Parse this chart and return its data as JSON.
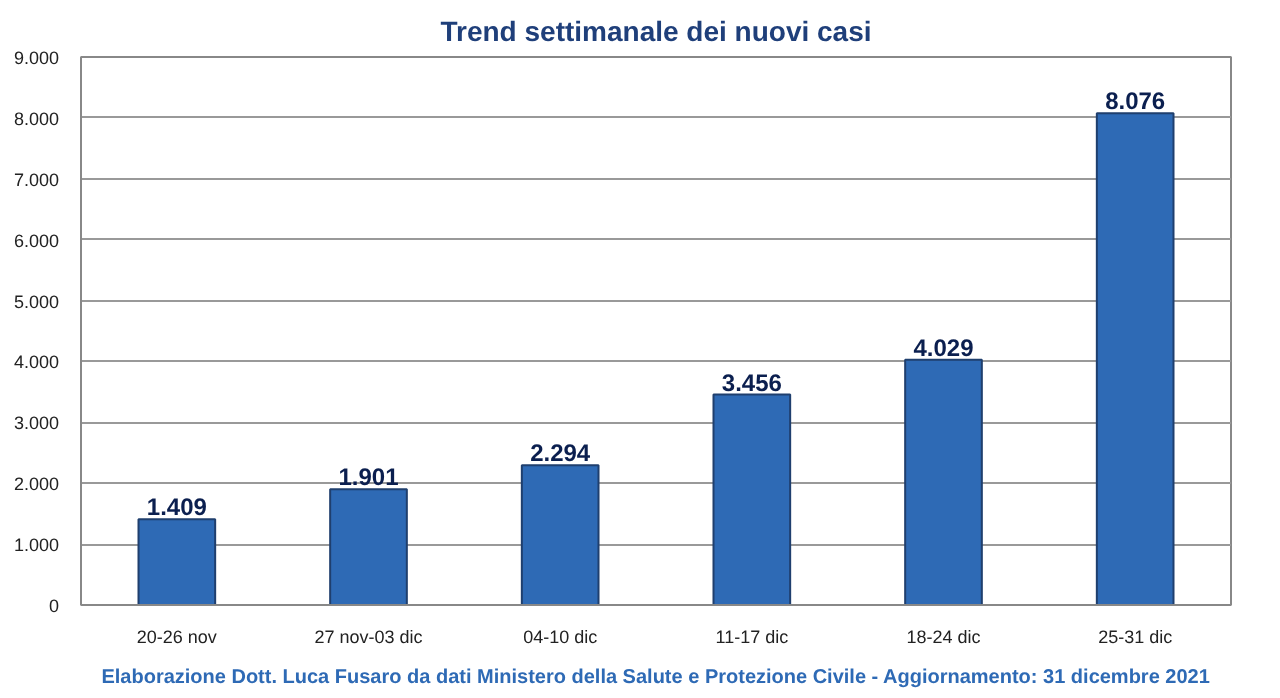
{
  "chart_data": {
    "type": "bar",
    "title": "Trend settimanale dei nuovi casi",
    "categories": [
      "20-26 nov",
      "27 nov-03 dic",
      "04-10 dic",
      "11-17 dic",
      "18-24 dic",
      "25-31 dic"
    ],
    "values": [
      1409,
      1901,
      2294,
      3456,
      4029,
      8076
    ],
    "color": "#2e6ab5",
    "ylim": [
      0,
      9000
    ],
    "yticks": [
      {
        "value": 0,
        "label": "0"
      },
      {
        "value": 1000,
        "label": "1.000"
      },
      {
        "value": 2000,
        "label": "2.000"
      },
      {
        "value": 3000,
        "label": "3.000"
      },
      {
        "value": 4000,
        "label": "4.000"
      },
      {
        "value": 5000,
        "label": "5.000"
      },
      {
        "value": 6000,
        "label": "6.000"
      },
      {
        "value": 7000,
        "label": "7.000"
      },
      {
        "value": 8000,
        "label": "8.000"
      },
      {
        "value": 9000,
        "label": "9.000"
      }
    ],
    "value_labels": [
      "1.409",
      "1.901",
      "2.294",
      "3.456",
      "4.029",
      "8.076"
    ],
    "grid": "y",
    "legend": false,
    "annotations": [
      "Elaborazione Dott. Luca Fusaro da dati Ministero della Salute e Protezione Civile - Aggiornamento: 31 dicembre 2021"
    ]
  }
}
